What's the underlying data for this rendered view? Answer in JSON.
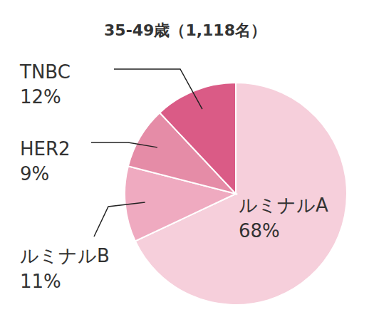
{
  "chart_data": {
    "type": "pie",
    "title": "35-49歳（1,118名）",
    "categories": [
      "ルミナルA",
      "ルミナルB",
      "HER2",
      "TNBC"
    ],
    "values": [
      68,
      11,
      9,
      12
    ],
    "value_labels": [
      "68%",
      "11%",
      "9%",
      "12%"
    ],
    "colors": [
      "#f6cfdb",
      "#efaac0",
      "#e58ca7",
      "#da5b86"
    ],
    "data_labels": true
  }
}
